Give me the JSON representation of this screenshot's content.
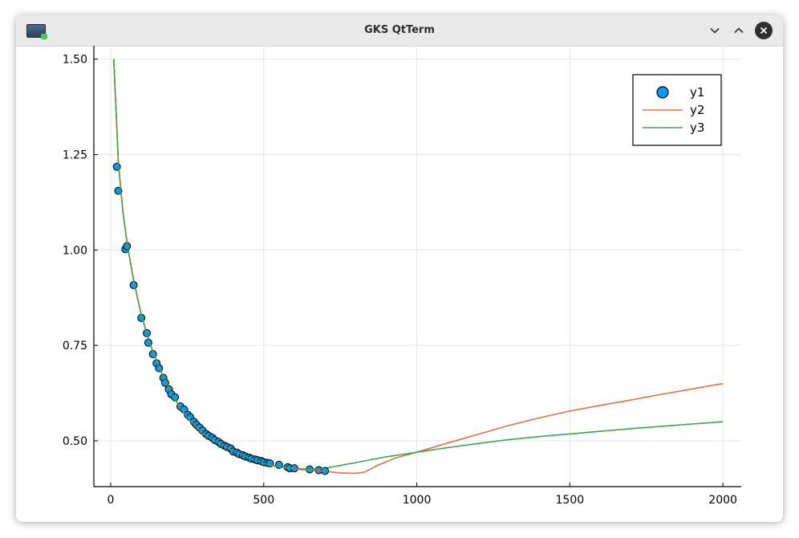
{
  "window": {
    "title": "GKS QtTerm",
    "app_icon": "terminal-icon",
    "controls": [
      "minimize-icon",
      "maximize-icon",
      "close-icon"
    ]
  },
  "chart_data": {
    "type": "scatter",
    "title": "",
    "xlabel": "",
    "ylabel": "",
    "xlim": [
      -55,
      2060
    ],
    "ylim": [
      0.38,
      1.535
    ],
    "xticks": [
      0,
      500,
      1000,
      1500,
      2000
    ],
    "xtick_labels": [
      "0",
      "500",
      "1000",
      "1500",
      "2000"
    ],
    "yticks": [
      0.5,
      0.75,
      1.0,
      1.25,
      1.5
    ],
    "ytick_labels": [
      "0.50",
      "0.75",
      "1.00",
      "1.25",
      "1.50"
    ],
    "grid": true,
    "legend": "top-right",
    "series": [
      {
        "name": "y1",
        "kind": "scatter",
        "color": "#009af9",
        "points": [
          [
            20,
            1.218
          ],
          [
            25,
            1.155
          ],
          [
            48,
            1.002
          ],
          [
            53,
            1.01
          ],
          [
            75,
            0.908
          ],
          [
            100,
            0.822
          ],
          [
            118,
            0.782
          ],
          [
            123,
            0.757
          ],
          [
            138,
            0.727
          ],
          [
            150,
            0.703
          ],
          [
            158,
            0.69
          ],
          [
            172,
            0.665
          ],
          [
            178,
            0.652
          ],
          [
            190,
            0.635
          ],
          [
            198,
            0.622
          ],
          [
            210,
            0.614
          ],
          [
            228,
            0.59
          ],
          [
            240,
            0.582
          ],
          [
            252,
            0.568
          ],
          [
            260,
            0.562
          ],
          [
            272,
            0.55
          ],
          [
            280,
            0.542
          ],
          [
            290,
            0.535
          ],
          [
            300,
            0.527
          ],
          [
            312,
            0.518
          ],
          [
            320,
            0.513
          ],
          [
            332,
            0.508
          ],
          [
            340,
            0.502
          ],
          [
            352,
            0.497
          ],
          [
            360,
            0.492
          ],
          [
            372,
            0.487
          ],
          [
            380,
            0.484
          ],
          [
            392,
            0.48
          ],
          [
            400,
            0.472
          ],
          [
            412,
            0.469
          ],
          [
            420,
            0.465
          ],
          [
            432,
            0.462
          ],
          [
            440,
            0.459
          ],
          [
            452,
            0.456
          ],
          [
            460,
            0.453
          ],
          [
            472,
            0.451
          ],
          [
            480,
            0.449
          ],
          [
            492,
            0.447
          ],
          [
            500,
            0.444
          ],
          [
            512,
            0.442
          ],
          [
            520,
            0.441
          ],
          [
            550,
            0.437
          ],
          [
            578,
            0.431
          ],
          [
            585,
            0.428
          ],
          [
            600,
            0.428
          ],
          [
            650,
            0.425
          ],
          [
            680,
            0.423
          ],
          [
            700,
            0.421
          ]
        ]
      },
      {
        "name": "y2",
        "kind": "line",
        "color": "#e26f46",
        "points": [
          [
            10,
            1.5
          ],
          [
            15,
            1.41
          ],
          [
            25,
            1.23
          ],
          [
            40,
            1.1
          ],
          [
            55,
            1.01
          ],
          [
            75,
            0.92
          ],
          [
            100,
            0.83
          ],
          [
            130,
            0.75
          ],
          [
            160,
            0.69
          ],
          [
            200,
            0.62
          ],
          [
            250,
            0.56
          ],
          [
            300,
            0.52
          ],
          [
            350,
            0.495
          ],
          [
            400,
            0.474
          ],
          [
            450,
            0.456
          ],
          [
            500,
            0.44
          ],
          [
            550,
            0.432
          ],
          [
            600,
            0.426
          ],
          [
            650,
            0.423
          ],
          [
            700,
            0.42
          ],
          [
            750,
            0.416
          ],
          [
            800,
            0.415
          ],
          [
            830,
            0.418
          ],
          [
            870,
            0.435
          ],
          [
            930,
            0.455
          ],
          [
            1000,
            0.47
          ],
          [
            1100,
            0.494
          ],
          [
            1200,
            0.517
          ],
          [
            1300,
            0.54
          ],
          [
            1400,
            0.56
          ],
          [
            1500,
            0.578
          ],
          [
            1600,
            0.593
          ],
          [
            1700,
            0.607
          ],
          [
            1800,
            0.622
          ],
          [
            1900,
            0.636
          ],
          [
            2000,
            0.65
          ]
        ]
      },
      {
        "name": "y3",
        "kind": "line",
        "color": "#3da44d",
        "points": [
          [
            10,
            1.5
          ],
          [
            15,
            1.41
          ],
          [
            25,
            1.23
          ],
          [
            40,
            1.1
          ],
          [
            55,
            1.01
          ],
          [
            75,
            0.92
          ],
          [
            100,
            0.83
          ],
          [
            130,
            0.75
          ],
          [
            160,
            0.69
          ],
          [
            200,
            0.62
          ],
          [
            250,
            0.56
          ],
          [
            300,
            0.52
          ],
          [
            350,
            0.495
          ],
          [
            400,
            0.474
          ],
          [
            450,
            0.456
          ],
          [
            500,
            0.44
          ],
          [
            550,
            0.432
          ],
          [
            600,
            0.428
          ],
          [
            650,
            0.425
          ],
          [
            700,
            0.428
          ],
          [
            800,
            0.443
          ],
          [
            900,
            0.458
          ],
          [
            1000,
            0.47
          ],
          [
            1100,
            0.482
          ],
          [
            1200,
            0.493
          ],
          [
            1300,
            0.503
          ],
          [
            1400,
            0.511
          ],
          [
            1500,
            0.518
          ],
          [
            1600,
            0.525
          ],
          [
            1700,
            0.532
          ],
          [
            1800,
            0.538
          ],
          [
            1900,
            0.544
          ],
          [
            2000,
            0.55
          ]
        ]
      }
    ]
  }
}
